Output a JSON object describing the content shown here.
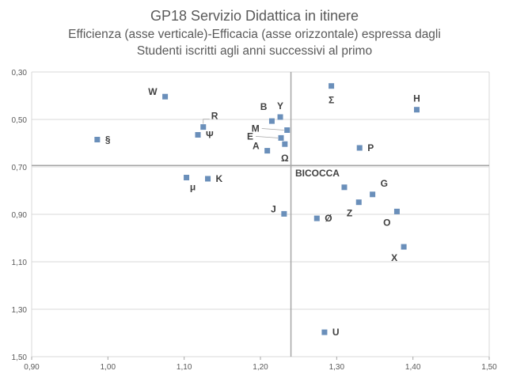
{
  "chart_data": {
    "type": "scatter",
    "title": "GP18 Servizio Didattica in itinere",
    "subtitle_line1": "Efficienza  (asse verticale)-Efficacia  (asse orizzontale) espressa dagli",
    "subtitle_line2": "Studenti iscritti agli anni successivi al primo",
    "xlabel": "",
    "ylabel": "",
    "xlim": [
      0.9,
      1.5
    ],
    "ylim": [
      0.3,
      1.5
    ],
    "y_inverted": true,
    "x_ticks": [
      "0,90",
      "1,00",
      "1,10",
      "1,20",
      "1,30",
      "1,40",
      "1,50"
    ],
    "x_tick_values": [
      0.9,
      1.0,
      1.1,
      1.2,
      1.3,
      1.4,
      1.5
    ],
    "y_ticks": [
      "0,30",
      "0,50",
      "0,70",
      "0,90",
      "1,10",
      "1,30",
      "1,50"
    ],
    "y_tick_values": [
      0.3,
      0.5,
      0.7,
      0.9,
      1.1,
      1.3,
      1.5
    ],
    "grid": "horizontal",
    "reference_lines": {
      "x": 1.24,
      "y": 0.694
    },
    "marker_color": "#6a8fba",
    "grid_color": "#d9d9d9",
    "reference_line_color": "#a6a6a6",
    "points": [
      {
        "label": "W",
        "x": 1.075,
        "y": 0.404,
        "pos": "left"
      },
      {
        "label": "R",
        "x": 1.125,
        "y": 0.532,
        "pos": "up-right"
      },
      {
        "label": "Ψ",
        "x": 1.118,
        "y": 0.565,
        "pos": "right"
      },
      {
        "label": "§",
        "x": 0.986,
        "y": 0.585,
        "pos": "right"
      },
      {
        "label": "B",
        "x": 1.215,
        "y": 0.507,
        "pos": "up-left"
      },
      {
        "label": "Y",
        "x": 1.226,
        "y": 0.49,
        "pos": "up"
      },
      {
        "label": "M",
        "x": 1.235,
        "y": 0.545,
        "pos": "left-far"
      },
      {
        "label": "E",
        "x": 1.227,
        "y": 0.578,
        "pos": "left-far"
      },
      {
        "label": "A",
        "x": 1.209,
        "y": 0.632,
        "pos": "left"
      },
      {
        "label": "Ω",
        "x": 1.232,
        "y": 0.604,
        "pos": "below"
      },
      {
        "label": "Σ",
        "x": 1.293,
        "y": 0.359,
        "pos": "below"
      },
      {
        "label": "H",
        "x": 1.405,
        "y": 0.459,
        "pos": "up"
      },
      {
        "label": "P",
        "x": 1.33,
        "y": 0.62,
        "pos": "right"
      },
      {
        "label": "μ",
        "x": 1.103,
        "y": 0.745,
        "pos": "below-right"
      },
      {
        "label": "K",
        "x": 1.131,
        "y": 0.75,
        "pos": "right"
      },
      {
        "label": "BICOCCA",
        "x": 1.31,
        "y": 0.786,
        "pos": "up-left"
      },
      {
        "label": "G",
        "x": 1.347,
        "y": 0.816,
        "pos": "up-right"
      },
      {
        "label": "Z",
        "x": 1.329,
        "y": 0.849,
        "pos": "below-left"
      },
      {
        "label": "O",
        "x": 1.379,
        "y": 0.888,
        "pos": "below-left"
      },
      {
        "label": "J",
        "x": 1.231,
        "y": 0.898,
        "pos": "left"
      },
      {
        "label": "Ø",
        "x": 1.274,
        "y": 0.917,
        "pos": "right"
      },
      {
        "label": "X",
        "x": 1.388,
        "y": 1.037,
        "pos": "below-left"
      },
      {
        "label": "U",
        "x": 1.284,
        "y": 1.397,
        "pos": "right"
      }
    ]
  }
}
